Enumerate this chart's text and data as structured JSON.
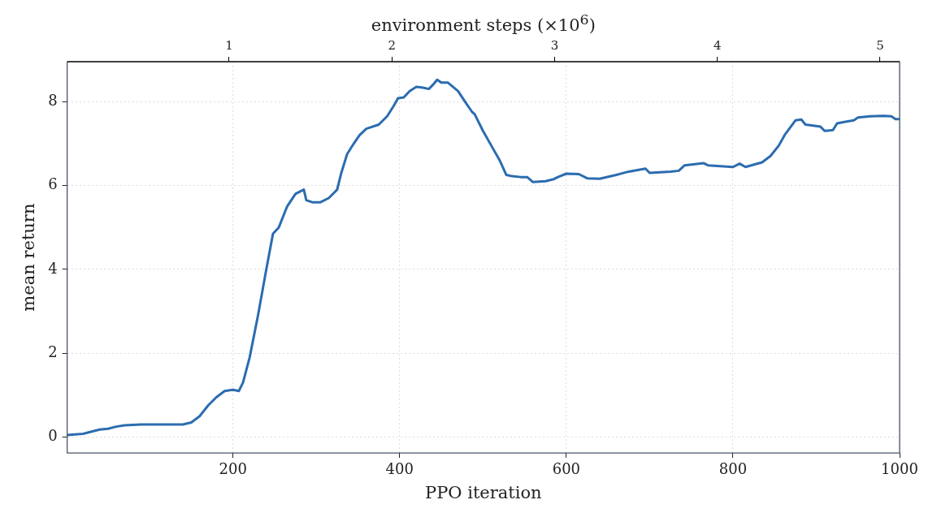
{
  "chart_data": {
    "type": "line",
    "xlabel": "PPO iteration",
    "ylabel": "mean return",
    "x2label": "environment steps (×10$^{6}$)",
    "xlim": [
      1,
      1000
    ],
    "xticks": [
      200,
      400,
      600,
      800,
      1000
    ],
    "x2lim": [
      0.00512,
      5.12
    ],
    "x2ticks": [
      1,
      2,
      3,
      4,
      5
    ],
    "ylim": [
      -0.38,
      8.95
    ],
    "yticks": [
      0,
      2,
      4,
      6,
      8
    ],
    "grid": true,
    "legend": false,
    "marker": "none",
    "line_style": "solid",
    "series": [
      {
        "color": "#2b6cb0",
        "x": [
          1,
          20,
          40,
          50,
          60,
          70,
          90,
          110,
          140,
          150,
          160,
          170,
          180,
          190,
          200,
          207,
          212,
          220,
          230,
          240,
          248,
          255,
          265,
          275,
          285,
          288,
          295,
          305,
          315,
          325,
          330,
          337,
          345,
          352,
          360,
          375,
          385,
          393,
          398,
          405,
          412,
          420,
          428,
          435,
          440,
          445,
          450,
          458,
          470,
          480,
          487,
          490,
          500,
          510,
          520,
          528,
          535,
          545,
          553,
          560,
          575,
          585,
          590,
          600,
          615,
          625,
          640,
          660,
          675,
          695,
          700,
          725,
          735,
          742,
          765,
          770,
          800,
          808,
          815,
          835,
          845,
          855,
          862,
          875,
          882,
          887,
          905,
          910,
          920,
          925,
          935,
          945,
          950,
          965,
          980,
          990,
          995,
          1000
        ],
        "values": [
          0.05,
          0.08,
          0.18,
          0.2,
          0.25,
          0.28,
          0.3,
          0.3,
          0.3,
          0.35,
          0.5,
          0.75,
          0.95,
          1.1,
          1.13,
          1.1,
          1.3,
          1.9,
          2.9,
          4.0,
          4.85,
          5.0,
          5.5,
          5.8,
          5.9,
          5.65,
          5.6,
          5.6,
          5.7,
          5.9,
          6.3,
          6.75,
          7.0,
          7.2,
          7.35,
          7.45,
          7.65,
          7.9,
          8.08,
          8.1,
          8.25,
          8.35,
          8.33,
          8.3,
          8.4,
          8.52,
          8.45,
          8.45,
          8.25,
          7.95,
          7.75,
          7.7,
          7.3,
          6.95,
          6.6,
          6.25,
          6.22,
          6.2,
          6.2,
          6.08,
          6.1,
          6.15,
          6.2,
          6.28,
          6.27,
          6.17,
          6.16,
          6.25,
          6.33,
          6.4,
          6.3,
          6.33,
          6.35,
          6.48,
          6.53,
          6.48,
          6.44,
          6.52,
          6.44,
          6.55,
          6.7,
          6.95,
          7.2,
          7.55,
          7.57,
          7.45,
          7.4,
          7.3,
          7.32,
          7.48,
          7.52,
          7.55,
          7.62,
          7.65,
          7.66,
          7.65,
          7.58,
          7.58
        ]
      }
    ]
  }
}
